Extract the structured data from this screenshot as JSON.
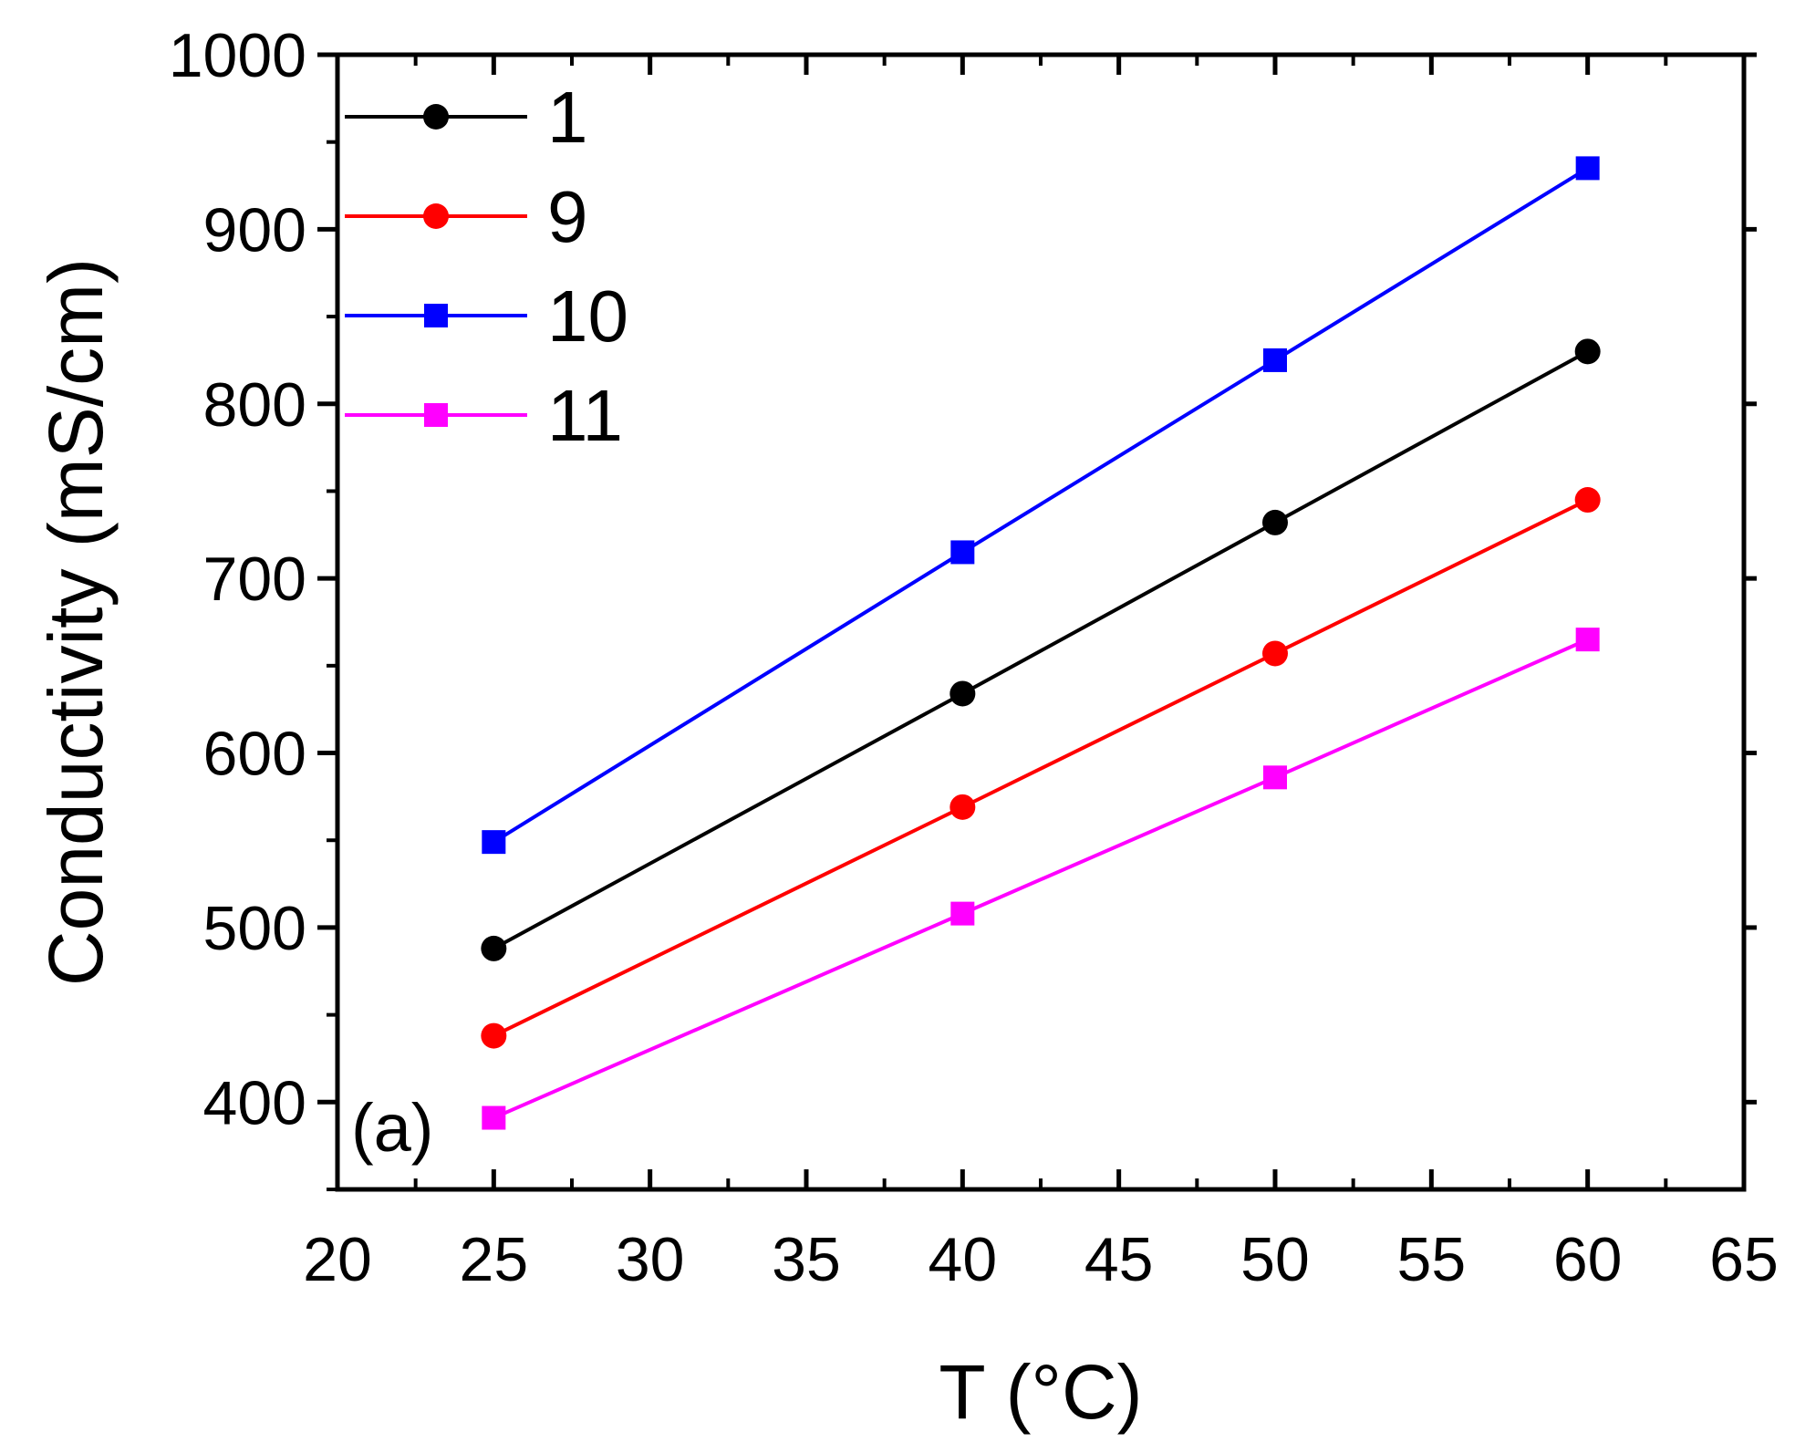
{
  "chart_data": {
    "type": "line",
    "title": "",
    "panel_label": "(a)",
    "xlabel": "T (°C)",
    "ylabel": "Conductivity (mS/cm)",
    "xlim": [
      20,
      65
    ],
    "ylim": [
      350,
      1000
    ],
    "x_ticks": [
      20,
      25,
      30,
      35,
      40,
      45,
      50,
      55,
      60,
      65
    ],
    "y_ticks": [
      400,
      500,
      600,
      700,
      800,
      900,
      1000
    ],
    "x": [
      25,
      40,
      50,
      60
    ],
    "grid": false,
    "legend_position": "top-left",
    "series": [
      {
        "name": "1",
        "color": "#000000",
        "marker": "circle",
        "values": [
          488,
          634,
          732,
          830
        ]
      },
      {
        "name": "9",
        "color": "#ff0000",
        "marker": "circle",
        "values": [
          438,
          569,
          657,
          745
        ]
      },
      {
        "name": "10",
        "color": "#0000ff",
        "marker": "square",
        "values": [
          549,
          715,
          825,
          935
        ]
      },
      {
        "name": "11",
        "color": "#ff00ff",
        "marker": "square",
        "values": [
          391,
          508,
          586,
          665
        ]
      }
    ]
  }
}
